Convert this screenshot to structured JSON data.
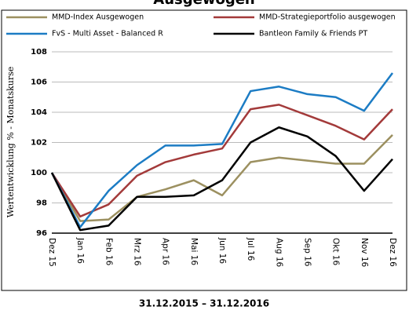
{
  "chart_data": {
    "type": "line",
    "title": "Ausgewogen",
    "ylabel": "Wertentwicklung % - Monatskurse",
    "footer": "31.12.2015 – 31.12.2016",
    "categories": [
      "Dez 15",
      "Jan 16",
      "Feb 16",
      "Mrz 16",
      "Apr 16",
      "Mai 16",
      "Jun 16",
      "Jul 16",
      "Aug 16",
      "Sep 16",
      "Okt 16",
      "Nov 16",
      "Dez 16"
    ],
    "series": [
      {
        "name": "MMD-Index Ausgewogen",
        "color": "#9c9060",
        "values": [
          100,
          96.8,
          96.9,
          98.4,
          98.9,
          99.5,
          98.5,
          100.7,
          101.0,
          100.8,
          100.6,
          100.6,
          102.5
        ]
      },
      {
        "name": "MMD-Strategieportfolio ausgewogen",
        "color": "#a33a3a",
        "values": [
          100,
          97.1,
          97.9,
          99.8,
          100.7,
          101.2,
          101.6,
          104.2,
          104.5,
          103.8,
          103.1,
          102.2,
          104.2
        ]
      },
      {
        "name": "FvS - Multi Asset - Balanced R",
        "color": "#1c7cc4",
        "values": [
          100,
          96.4,
          98.8,
          100.5,
          101.8,
          101.8,
          101.9,
          105.4,
          105.7,
          105.2,
          105.0,
          104.1,
          106.6
        ]
      },
      {
        "name": "Bantleon Family & Friends PT",
        "color": "#000000",
        "values": [
          100,
          96.2,
          96.5,
          98.4,
          98.4,
          98.5,
          99.5,
          102.0,
          103.0,
          102.4,
          101.1,
          98.8,
          100.9
        ]
      }
    ],
    "ylim": [
      96,
      108
    ],
    "yticks": [
      96,
      98,
      100,
      102,
      104,
      106,
      108
    ],
    "grid": true
  }
}
